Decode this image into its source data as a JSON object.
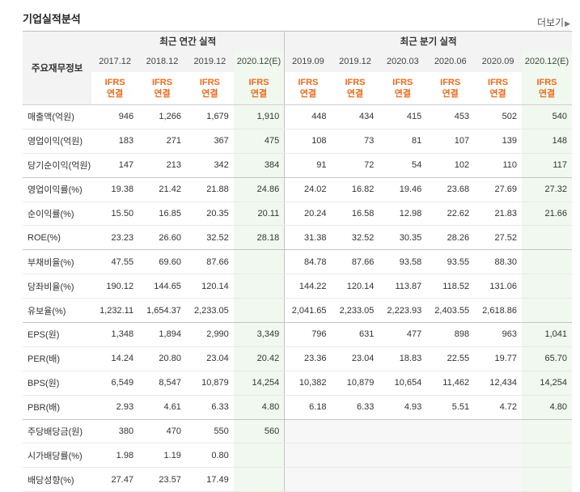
{
  "header": {
    "title": "기업실적분석",
    "more_label": "더보기"
  },
  "table": {
    "row_header_label": "주요재무정보",
    "annual_group_label": "최근 연간 실적",
    "quarterly_group_label": "최근 분기 실적",
    "annual_periods": [
      "2017.12",
      "2018.12",
      "2019.12",
      "2020.12(E)"
    ],
    "quarterly_periods": [
      "2019.09",
      "2019.12",
      "2020.03",
      "2020.06",
      "2020.09",
      "2020.12(E)"
    ],
    "standard_line1": "IFRS",
    "standard_line2": "연결",
    "rows": [
      {
        "label": "매출액(억원)",
        "values": [
          "946",
          "1,266",
          "1,679",
          "1,910",
          "448",
          "434",
          "415",
          "453",
          "502",
          "540"
        ]
      },
      {
        "label": "영업이익(억원)",
        "values": [
          "183",
          "271",
          "367",
          "475",
          "108",
          "73",
          "81",
          "107",
          "139",
          "148"
        ]
      },
      {
        "label": "당기순이익(억원)",
        "values": [
          "147",
          "213",
          "342",
          "384",
          "91",
          "72",
          "54",
          "102",
          "110",
          "117"
        ]
      },
      {
        "label": "영업이익률(%)",
        "values": [
          "19.38",
          "21.42",
          "21.88",
          "24.86",
          "24.02",
          "16.82",
          "19.46",
          "23.68",
          "27.69",
          "27.32"
        ]
      },
      {
        "label": "순이익률(%)",
        "values": [
          "15.50",
          "16.85",
          "20.35",
          "20.11",
          "20.24",
          "16.58",
          "12.98",
          "22.62",
          "21.83",
          "21.66"
        ]
      },
      {
        "label": "ROE(%)",
        "values": [
          "23.23",
          "26.60",
          "32.52",
          "28.18",
          "31.38",
          "32.52",
          "30.35",
          "28.26",
          "27.52",
          ""
        ]
      },
      {
        "label": "부채비율(%)",
        "values": [
          "47.55",
          "69.60",
          "87.66",
          "",
          "84.78",
          "87.66",
          "93.58",
          "93.55",
          "88.30",
          ""
        ]
      },
      {
        "label": "당좌비율(%)",
        "values": [
          "190.12",
          "144.65",
          "120.14",
          "",
          "144.22",
          "120.14",
          "113.87",
          "118.52",
          "131.06",
          ""
        ]
      },
      {
        "label": "유보율(%)",
        "values": [
          "1,232.11",
          "1,654.37",
          "2,233.05",
          "",
          "2,041.65",
          "2,233.05",
          "2,223.93",
          "2,403.55",
          "2,618.86",
          ""
        ]
      },
      {
        "label": "EPS(원)",
        "values": [
          "1,348",
          "1,894",
          "2,990",
          "3,349",
          "796",
          "631",
          "477",
          "898",
          "963",
          "1,041"
        ]
      },
      {
        "label": "PER(배)",
        "values": [
          "14.24",
          "20.80",
          "23.04",
          "20.42",
          "23.36",
          "23.04",
          "18.83",
          "22.55",
          "19.77",
          "65.70"
        ]
      },
      {
        "label": "BPS(원)",
        "values": [
          "6,549",
          "8,547",
          "10,879",
          "14,254",
          "10,382",
          "10,879",
          "10,654",
          "11,462",
          "12,434",
          "14,254"
        ]
      },
      {
        "label": "PBR(배)",
        "values": [
          "2.93",
          "4.61",
          "6.33",
          "4.80",
          "6.18",
          "6.33",
          "4.93",
          "5.51",
          "4.72",
          "4.80"
        ]
      },
      {
        "label": "주당배당금(원)",
        "values": [
          "380",
          "470",
          "550",
          "560",
          "",
          "",
          "",
          "",
          "",
          ""
        ]
      },
      {
        "label": "시가배당률(%)",
        "values": [
          "1.98",
          "1.19",
          "0.80",
          "",
          "",
          "",
          "",
          "",
          "",
          ""
        ]
      },
      {
        "label": "배당성향(%)",
        "values": [
          "27.47",
          "23.57",
          "17.49",
          "",
          "",
          "",
          "",
          "",
          "",
          ""
        ]
      }
    ]
  }
}
